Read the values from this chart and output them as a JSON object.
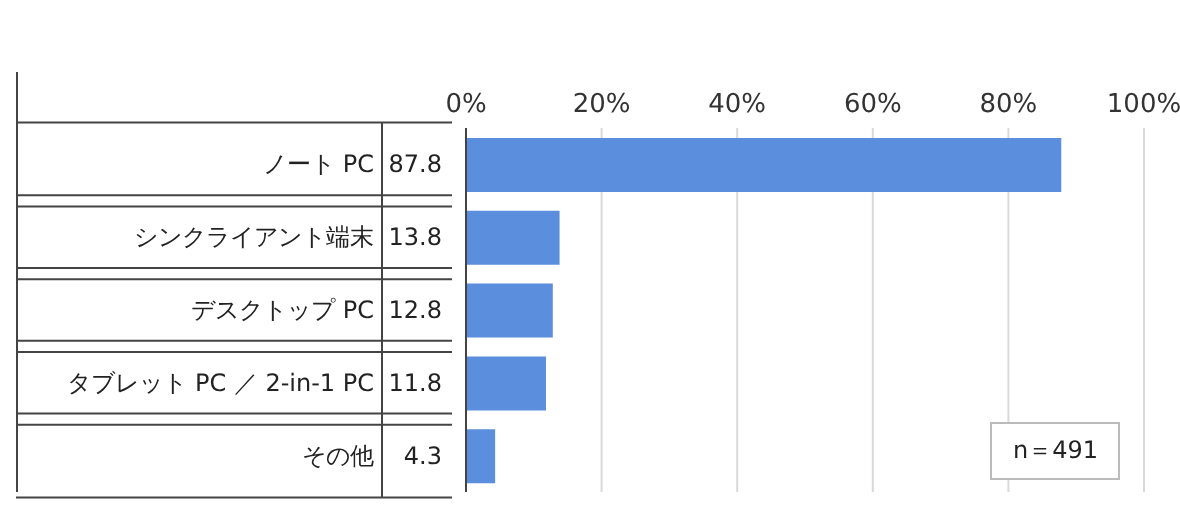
{
  "chart_data": {
    "type": "bar",
    "orientation": "horizontal",
    "categories": [
      "ノート PC",
      "シンクライアント端末",
      "デスクトップ PC",
      "タブレット PC ／ 2-in-1 PC",
      "その他"
    ],
    "values": [
      87.8,
      13.8,
      12.8,
      11.8,
      4.3
    ],
    "color": "#5b8edc",
    "xlim": [
      0,
      100
    ],
    "xticks": [
      {
        "value": 0,
        "label": "0%"
      },
      {
        "value": 20,
        "label": "20%"
      },
      {
        "value": 40,
        "label": "40%"
      },
      {
        "value": 60,
        "label": "60%"
      },
      {
        "value": 80,
        "label": "80%"
      },
      {
        "value": 100,
        "label": "100%"
      }
    ],
    "grid": "x",
    "data_labels": true,
    "annotations": [
      "n＝491"
    ]
  }
}
